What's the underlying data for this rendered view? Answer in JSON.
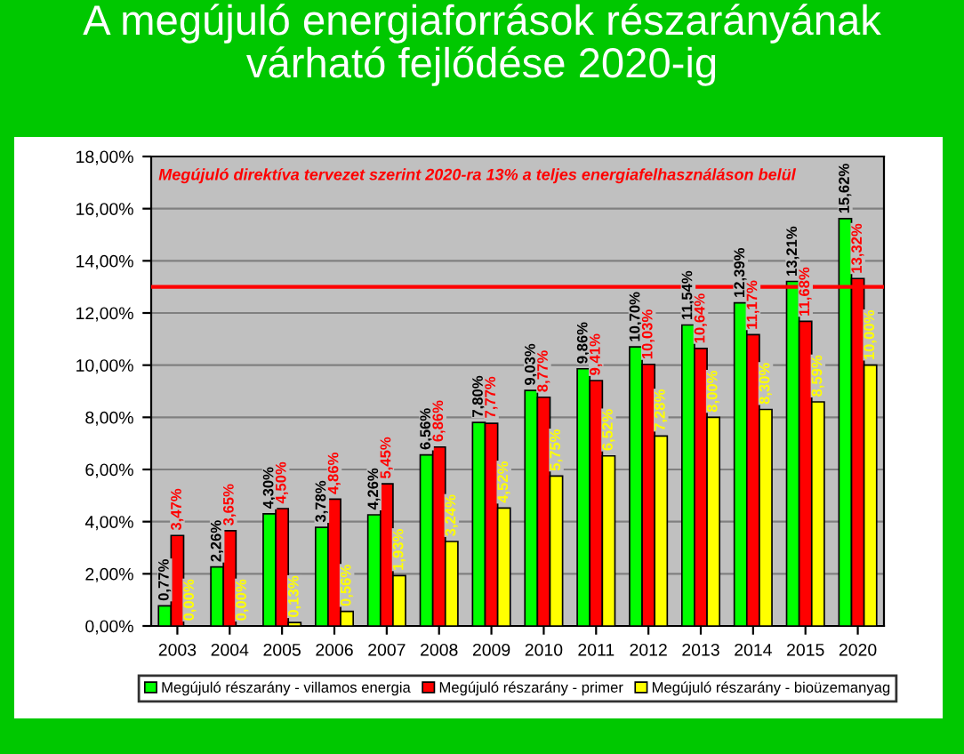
{
  "chart_data": {
    "type": "bar",
    "title": "A megújuló energiaforrások részarányának\nvárható fejlődése 2020-ig",
    "categories": [
      "2003",
      "2004",
      "2005",
      "2006",
      "2007",
      "2008",
      "2009",
      "2010",
      "2011",
      "2012",
      "2013",
      "2014",
      "2015",
      "2020"
    ],
    "series": [
      {
        "name": "Megújuló részarány - villamos energia",
        "color": "#00ff00",
        "values": [
          0.77,
          2.26,
          4.3,
          3.78,
          4.26,
          6.56,
          7.8,
          9.03,
          9.86,
          10.7,
          11.54,
          12.39,
          13.21,
          15.62
        ],
        "value_labels": [
          "0,77%",
          "2,26%",
          "4,30%",
          "3,78%",
          "4,26%",
          "6,56%",
          "7,80%",
          "9,03%",
          "9,86%",
          "10,70%",
          "11,54%",
          "12,39%",
          "13,21%",
          "15,62%"
        ]
      },
      {
        "name": "Megújuló részarány - primer",
        "color": "#ff0000",
        "values": [
          3.47,
          3.65,
          4.5,
          4.86,
          5.45,
          6.86,
          7.77,
          8.77,
          9.41,
          10.03,
          10.64,
          11.17,
          11.68,
          13.32
        ],
        "value_labels": [
          "3,47%",
          "3,65%",
          "4,50%",
          "4,86%",
          "5,45%",
          "6,86%",
          "7,77%",
          "8,77%",
          "9,41%",
          "10,03%",
          "10,64%",
          "11,17%",
          "11,68%",
          "13,32%"
        ]
      },
      {
        "name": "Megújuló részarány - bioüzemanyag",
        "color": "#ffff00",
        "values": [
          0.0,
          0.0,
          0.13,
          0.56,
          1.93,
          3.24,
          4.52,
          5.75,
          6.52,
          7.28,
          8.0,
          8.3,
          8.59,
          10.0
        ],
        "value_labels": [
          "0,00%",
          "0,00%",
          "0,13%",
          "0,56%",
          "1,93%",
          "3,24%",
          "4,52%",
          "5,75%",
          "6,52%",
          "7,28%",
          "8,00%",
          "8,30%",
          "8,59%",
          "10,00%"
        ]
      }
    ],
    "ylim": [
      0,
      18
    ],
    "yticks": [
      {
        "value": 0,
        "label": "0,00%"
      },
      {
        "value": 2,
        "label": "2,00%"
      },
      {
        "value": 4,
        "label": "4,00%"
      },
      {
        "value": 6,
        "label": "6,00%"
      },
      {
        "value": 8,
        "label": "8,00%"
      },
      {
        "value": 10,
        "label": "10,00%"
      },
      {
        "value": 12,
        "label": "12,00%"
      },
      {
        "value": 14,
        "label": "14,00%"
      },
      {
        "value": 16,
        "label": "16,00%"
      },
      {
        "value": 18,
        "label": "18,00%"
      }
    ],
    "ref_lines": [
      {
        "axis": "y",
        "value": 13,
        "color": "#ff0000",
        "label": "Megújuló direktíva tervezet szerint 2020-ra 13% a teljes energiafelhasználáson belül"
      }
    ],
    "grid": "y",
    "legend": "bottom"
  }
}
